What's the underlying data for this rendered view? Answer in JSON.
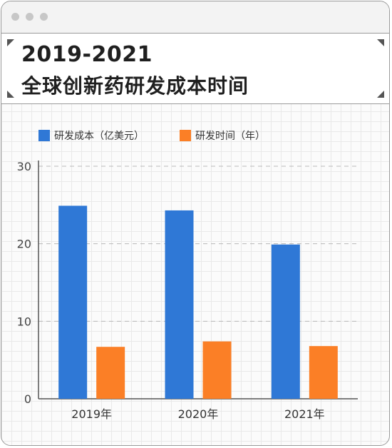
{
  "window": {
    "title_line1": "2019-2021",
    "title_line2": "全球创新药研发成本时间"
  },
  "colors": {
    "series_cost": "#2f78d6",
    "series_time": "#fb7f26",
    "axis": "#555555",
    "grid": "#b8b8b8"
  },
  "chart_data": {
    "type": "bar",
    "title": "",
    "xlabel": "",
    "ylabel": "",
    "categories": [
      "2019年",
      "2020年",
      "2021年"
    ],
    "ylim": [
      0,
      30
    ],
    "yticks": [
      0,
      10,
      20,
      30
    ],
    "grid": "horizontal dashed",
    "legend_position": "top-left",
    "series": [
      {
        "name": "研发成本（亿美元）",
        "values": [
          24.9,
          24.3,
          19.9
        ]
      },
      {
        "name": "研发时间（年）",
        "values": [
          6.7,
          7.4,
          6.8
        ]
      }
    ]
  }
}
